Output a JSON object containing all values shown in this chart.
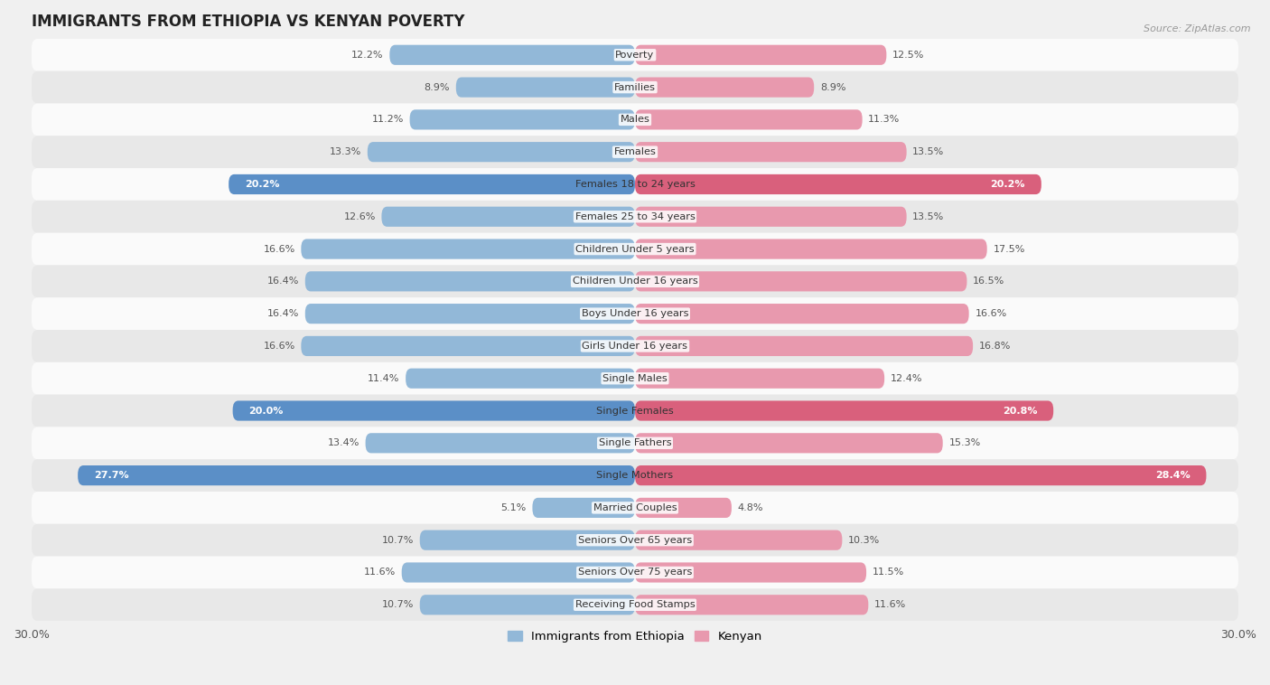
{
  "title": "IMMIGRANTS FROM ETHIOPIA VS KENYAN POVERTY",
  "source": "Source: ZipAtlas.com",
  "categories": [
    "Poverty",
    "Families",
    "Males",
    "Females",
    "Females 18 to 24 years",
    "Females 25 to 34 years",
    "Children Under 5 years",
    "Children Under 16 years",
    "Boys Under 16 years",
    "Girls Under 16 years",
    "Single Males",
    "Single Females",
    "Single Fathers",
    "Single Mothers",
    "Married Couples",
    "Seniors Over 65 years",
    "Seniors Over 75 years",
    "Receiving Food Stamps"
  ],
  "ethiopia_values": [
    12.2,
    8.9,
    11.2,
    13.3,
    20.2,
    12.6,
    16.6,
    16.4,
    16.4,
    16.6,
    11.4,
    20.0,
    13.4,
    27.7,
    5.1,
    10.7,
    11.6,
    10.7
  ],
  "kenyan_values": [
    12.5,
    8.9,
    11.3,
    13.5,
    20.2,
    13.5,
    17.5,
    16.5,
    16.6,
    16.8,
    12.4,
    20.8,
    15.3,
    28.4,
    4.8,
    10.3,
    11.5,
    11.6
  ],
  "ethiopia_color": "#92b8d8",
  "kenyan_color": "#e899ae",
  "ethiopia_highlight_color": "#5b8fc7",
  "kenyan_highlight_color": "#d9607c",
  "highlight_rows": [
    4,
    11,
    13
  ],
  "xlim": 30.0,
  "bar_height": 0.62,
  "background_color": "#f0f0f0",
  "row_colors": [
    "#fafafa",
    "#e8e8e8"
  ],
  "legend_label_ethiopia": "Immigrants from Ethiopia",
  "legend_label_kenyan": "Kenyan",
  "title_fontsize": 12,
  "label_fontsize": 8.2,
  "value_fontsize": 8.0
}
